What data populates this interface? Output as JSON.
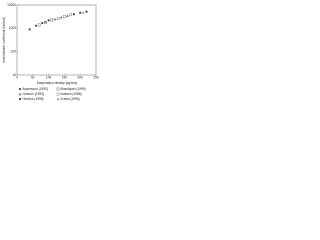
{
  "chart_data": {
    "type": "scatter",
    "xlabel": "Evaporation density (kg/m²s)",
    "ylabel": "Heat transfer coefficient (W/m²K)",
    "xlim": [
      0,
      250
    ],
    "xticks": [
      0,
      50,
      100,
      150,
      200,
      250
    ],
    "ylim": [
      10,
      10000
    ],
    "yticks": [
      10,
      100,
      1000,
      10000
    ],
    "log_y": true,
    "legend": "bottom",
    "series": [
      {
        "name": "Andersson (1992)",
        "color": "#1f4e9c",
        "marker": "circle",
        "x": [
          40,
          60,
          80,
          100
        ],
        "y": [
          900,
          1300,
          1700,
          2200
        ]
      },
      {
        "name": "Bhashyam (1999)",
        "color": "#333333",
        "marker": "square",
        "x": [
          70,
          90,
          110
        ],
        "y": [
          1400,
          1800,
          2300
        ]
      },
      {
        "name": "Gannon (1993)",
        "color": "#666666",
        "marker": "triangle",
        "x": [
          120,
          140,
          160
        ],
        "y": [
          2500,
          3000,
          3500
        ]
      },
      {
        "name": "Isaksen (1988)",
        "color": "#1f4e9c",
        "marker": "square",
        "x": [
          130,
          150,
          170
        ],
        "y": [
          2600,
          3200,
          3800
        ]
      },
      {
        "name": "Hennes (1998)",
        "color": "#444444",
        "marker": "circle",
        "x": [
          180,
          200,
          220
        ],
        "y": [
          4000,
          4600,
          5200
        ]
      },
      {
        "name": "Kresin (1996)",
        "color": "#888888",
        "marker": "triangle",
        "x": [
          90,
          160,
          210
        ],
        "y": [
          1900,
          3400,
          4800
        ]
      }
    ]
  }
}
